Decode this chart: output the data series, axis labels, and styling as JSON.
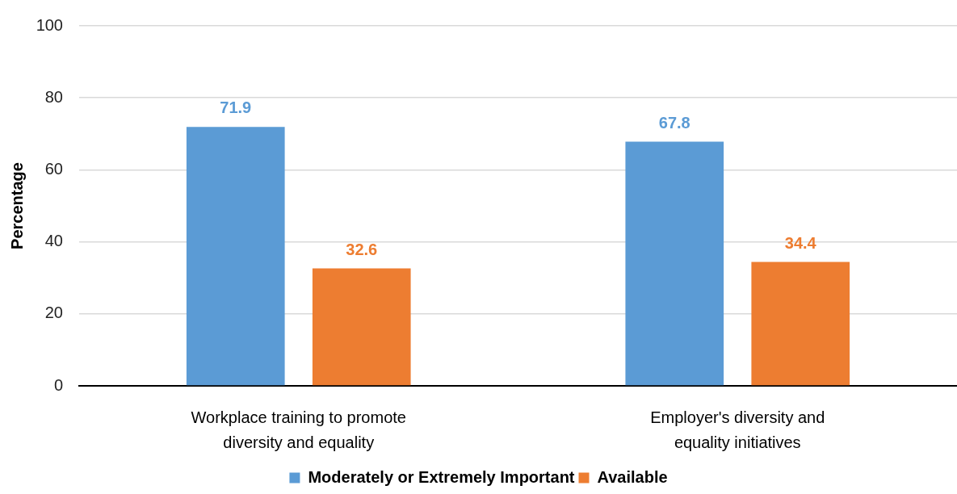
{
  "chart_data": {
    "type": "bar",
    "ylabel": "Percentage",
    "categories": [
      "Workplace training to promote diversity and equality",
      "Employer's diversity and equality initiatives"
    ],
    "series": [
      {
        "name": "Moderately or Extremely Important",
        "color": "#5b9bd5",
        "values": [
          71.9,
          67.8
        ]
      },
      {
        "name": "Available",
        "color": "#ed7d31",
        "values": [
          32.6,
          34.4
        ]
      }
    ],
    "ylim": [
      0,
      100
    ],
    "yticks": [
      0,
      20,
      40,
      60,
      80,
      100
    ],
    "grid": "y",
    "legend": "bottom",
    "data_labels": true
  }
}
